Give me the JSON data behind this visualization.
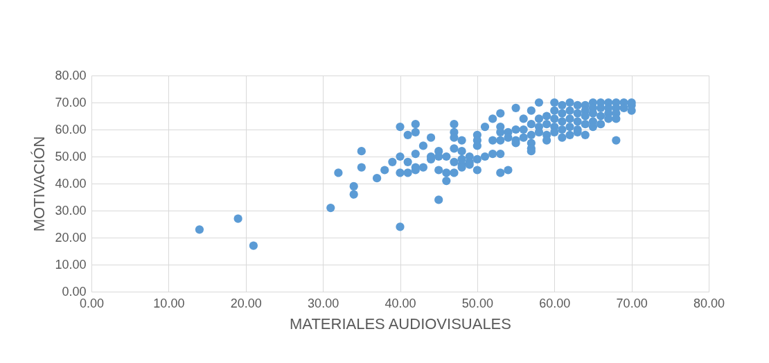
{
  "chart_data": {
    "type": "scatter",
    "xlabel": "MATERIALES AUDIOVISUALES",
    "ylabel": "MOTIVACIÓN",
    "color": "#5b9bd5",
    "marker": "circle",
    "grid": true,
    "xlim": [
      0,
      80
    ],
    "ylim": [
      0,
      80
    ],
    "xticks": [
      {
        "value": 0,
        "label": "0.00"
      },
      {
        "value": 10,
        "label": "10.00"
      },
      {
        "value": 20,
        "label": "20.00"
      },
      {
        "value": 30,
        "label": "30.00"
      },
      {
        "value": 40,
        "label": "40.00"
      },
      {
        "value": 50,
        "label": "50.00"
      },
      {
        "value": 60,
        "label": "60.00"
      },
      {
        "value": 70,
        "label": "70.00"
      },
      {
        "value": 80,
        "label": "80.00"
      }
    ],
    "yticks": [
      {
        "value": 0,
        "label": "0.00"
      },
      {
        "value": 10,
        "label": "10.00"
      },
      {
        "value": 20,
        "label": "20.00"
      },
      {
        "value": 30,
        "label": "30.00"
      },
      {
        "value": 40,
        "label": "40.00"
      },
      {
        "value": 50,
        "label": "50.00"
      },
      {
        "value": 60,
        "label": "60.00"
      },
      {
        "value": 70,
        "label": "70.00"
      },
      {
        "value": 80,
        "label": "80.00"
      }
    ],
    "x": [
      14,
      19,
      21,
      31,
      32,
      34,
      34,
      35,
      35,
      37,
      38,
      39,
      40,
      40,
      40,
      40,
      41,
      41,
      41,
      42,
      42,
      42,
      42,
      42,
      43,
      43,
      44,
      44,
      44,
      45,
      45,
      45,
      45,
      46,
      46,
      46,
      47,
      47,
      47,
      47,
      47,
      47,
      48,
      48,
      48,
      48,
      48,
      49,
      49,
      49,
      50,
      50,
      50,
      50,
      50,
      51,
      51,
      52,
      52,
      52,
      53,
      53,
      53,
      53,
      53,
      53,
      54,
      54,
      54,
      55,
      55,
      55,
      55,
      56,
      56,
      56,
      57,
      57,
      57,
      57,
      57,
      57,
      58,
      58,
      58,
      58,
      59,
      59,
      59,
      59,
      60,
      60,
      60,
      60,
      60,
      61,
      61,
      61,
      61,
      61,
      62,
      62,
      62,
      62,
      62,
      63,
      63,
      63,
      63,
      63,
      64,
      64,
      64,
      64,
      64,
      65,
      65,
      65,
      65,
      65,
      66,
      66,
      66,
      66,
      67,
      67,
      67,
      67,
      68,
      68,
      68,
      68,
      68,
      69,
      69,
      70,
      70,
      70
    ],
    "values": [
      23,
      27,
      17,
      31,
      44,
      39,
      36,
      52,
      46,
      42,
      45,
      48,
      61,
      50,
      44,
      24,
      58,
      48,
      44,
      62,
      59,
      51,
      46,
      45,
      54,
      46,
      57,
      50,
      49,
      52,
      50,
      45,
      34,
      50,
      44,
      41,
      62,
      59,
      57,
      53,
      48,
      44,
      56,
      52,
      49,
      47,
      46,
      50,
      48,
      47,
      58,
      56,
      54,
      49,
      45,
      61,
      50,
      64,
      56,
      51,
      66,
      61,
      59,
      56,
      51,
      44,
      59,
      57,
      45,
      68,
      60,
      56,
      55,
      64,
      60,
      57,
      67,
      62,
      58,
      55,
      53,
      52,
      70,
      64,
      61,
      59,
      65,
      62,
      58,
      56,
      70,
      67,
      64,
      61,
      59,
      69,
      66,
      63,
      60,
      57,
      70,
      67,
      64,
      61,
      58,
      69,
      66,
      63,
      60,
      59,
      69,
      67,
      65,
      62,
      58,
      70,
      68,
      66,
      63,
      61,
      70,
      68,
      65,
      62,
      70,
      68,
      66,
      64,
      70,
      68,
      66,
      64,
      56,
      70,
      68,
      70,
      69,
      67
    ]
  }
}
